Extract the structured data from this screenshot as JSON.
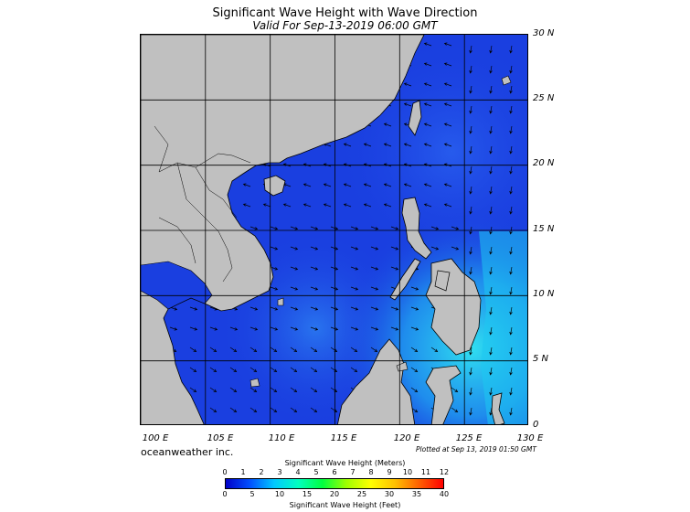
{
  "title": "Significant Wave Height with Wave Direction",
  "subtitle": "Valid For Sep-13-2019 06:00 GMT",
  "latitude_labels": [
    "30 N",
    "25 N",
    "20 N",
    "15 N",
    "10 N",
    "5 N",
    "0"
  ],
  "longitude_labels": [
    "100 E",
    "105 E",
    "110 E",
    "115 E",
    "120 E",
    "125 E",
    "130 E"
  ],
  "company": "oceanweather inc.",
  "plotted_at": "Plotted at Sep 13, 2019 01:50 GMT",
  "colorbar": {
    "meters_title": "Significant Wave Height (Meters)",
    "meters_ticks": [
      "0",
      "1",
      "2",
      "3",
      "4",
      "5",
      "6",
      "7",
      "8",
      "9",
      "10",
      "11",
      "12"
    ],
    "feet_title": "Significant Wave Height (Feet)",
    "feet_ticks": [
      "0",
      "5",
      "10",
      "15",
      "20",
      "25",
      "30",
      "35",
      "40"
    ],
    "colors": [
      "#0000c8",
      "#0050ff",
      "#00c8ff",
      "#00ffc0",
      "#00ff40",
      "#a0ff00",
      "#ffff00",
      "#ffc000",
      "#ff6000",
      "#ff0000"
    ]
  },
  "colors": {
    "land": "#c0c0c0",
    "sea_base": "#1a3fe0",
    "sea_high": "#1ec8f0",
    "arrows": "#000000"
  }
}
